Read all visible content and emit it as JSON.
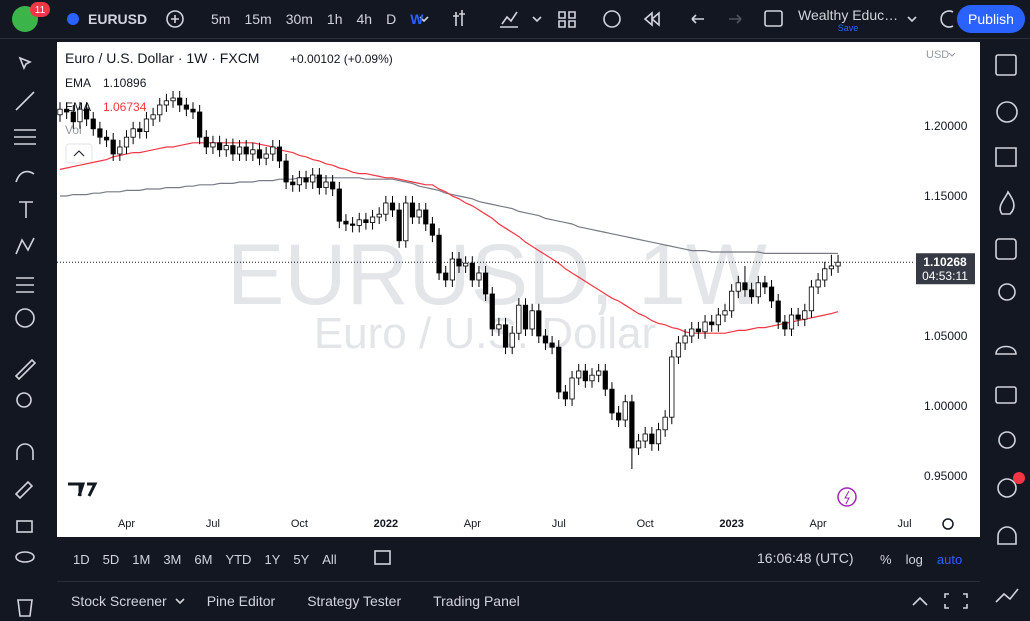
{
  "ui": {
    "notifications": "11",
    "symbol": "EURUSD",
    "intervals": [
      "5m",
      "15m",
      "30m",
      "1h",
      "4h",
      "D",
      "W"
    ],
    "active_interval": "W",
    "layout_name": "Wealthy Educ…",
    "save_status": "Save",
    "publish": "Publish",
    "legend_title": "Euro / U.S. Dollar · 1W · FXCM",
    "change": "+0.00102 (+0.09%)",
    "volume": "Vol",
    "currency": "USD",
    "watermark_symbol": "EURUSD, 1W",
    "watermark_description": "Euro / U.S. Dollar",
    "countdown": "04:53:11",
    "ranges": [
      "1D",
      "5D",
      "1M",
      "3M",
      "6M",
      "YTD",
      "1Y",
      "5Y",
      "All"
    ],
    "clock": "16:06:48 (UTC)",
    "scale_options": [
      "%",
      "log",
      "auto"
    ],
    "bottom_tabs": [
      "Stock Screener",
      "Pine Editor",
      "Strategy Tester",
      "Trading Panel"
    ]
  },
  "chart_data": {
    "type": "candlestick",
    "up_color": "#ffffff",
    "down_color": "#000000",
    "outline_color": "#000000",
    "grid": false,
    "ylim": [
      0.9257,
      1.26
    ],
    "yticks": [
      {
        "value": 0.95,
        "label": "0.95000"
      },
      {
        "value": 1.0,
        "label": "1.00000"
      },
      {
        "value": 1.05,
        "label": "1.05000"
      },
      {
        "value": 1.15,
        "label": "1.15000"
      },
      {
        "value": 1.2,
        "label": "1.20000"
      }
    ],
    "categories": [
      null,
      null,
      null,
      null,
      null,
      null,
      null,
      null,
      null,
      null,
      "Apr",
      null,
      null,
      null,
      null,
      null,
      null,
      null,
      null,
      null,
      null,
      null,
      null,
      "Jul",
      null,
      null,
      null,
      null,
      null,
      null,
      null,
      null,
      null,
      null,
      null,
      null,
      "Oct",
      null,
      null,
      null,
      null,
      null,
      null,
      null,
      null,
      null,
      null,
      null,
      null,
      "2022",
      null,
      null,
      null,
      null,
      null,
      null,
      null,
      null,
      null,
      null,
      null,
      null,
      "Apr",
      null,
      null,
      null,
      null,
      null,
      null,
      null,
      null,
      null,
      null,
      null,
      null,
      "Jul",
      null,
      null,
      null,
      null,
      null,
      null,
      null,
      null,
      null,
      null,
      null,
      null,
      "Oct",
      null,
      null,
      null,
      null,
      null,
      null,
      null,
      null,
      null,
      null,
      null,
      null,
      "2023",
      null,
      null,
      null,
      null,
      null,
      null,
      null,
      null,
      null,
      null,
      null,
      null,
      "Apr",
      null,
      null,
      null,
      null,
      null,
      null,
      null,
      null,
      null,
      null,
      null,
      null,
      "Jul"
    ],
    "open": [
      1.208,
      1.212,
      1.21,
      1.203,
      1.212,
      1.205,
      1.198,
      1.192,
      1.19,
      1.18,
      1.185,
      1.192,
      1.198,
      1.196,
      1.205,
      1.208,
      1.215,
      1.218,
      1.22,
      1.215,
      1.212,
      1.21,
      1.192,
      1.185,
      1.188,
      1.183,
      1.186,
      1.18,
      1.185,
      1.18,
      1.183,
      1.177,
      1.18,
      1.185,
      1.175,
      1.16,
      1.158,
      1.163,
      1.16,
      1.165,
      1.156,
      1.16,
      1.155,
      1.132,
      1.13,
      1.129,
      1.133,
      1.131,
      1.135,
      1.137,
      1.145,
      1.14,
      1.118,
      1.145,
      1.135,
      1.14,
      1.13,
      1.122,
      1.095,
      1.09,
      1.105,
      1.1,
      1.102,
      1.09,
      1.095,
      1.08,
      1.055,
      1.058,
      1.042,
      1.052,
      1.072,
      1.055,
      1.068,
      1.05,
      1.045,
      1.042,
      1.01,
      1.005,
      1.02,
      1.025,
      1.018,
      1.022,
      1.025,
      1.012,
      0.995,
      0.99,
      1.003,
      0.97,
      0.975,
      0.98,
      0.973,
      0.983,
      0.992,
      1.035,
      1.045,
      1.05,
      1.055,
      1.053,
      1.06,
      1.058,
      1.065,
      1.068,
      1.082,
      1.088,
      1.083,
      1.078,
      1.088,
      1.085,
      1.075,
      1.06,
      1.055,
      1.065,
      1.062,
      1.068,
      1.085,
      1.09,
      1.098,
      1.1,
      null,
      null,
      null,
      null,
      null,
      null,
      null,
      null,
      null,
      null
    ],
    "high": [
      1.217,
      1.217,
      1.215,
      1.217,
      1.217,
      1.21,
      1.203,
      1.197,
      1.195,
      1.19,
      1.197,
      1.203,
      1.203,
      1.21,
      1.213,
      1.22,
      1.223,
      1.225,
      1.225,
      1.22,
      1.217,
      1.215,
      1.197,
      1.193,
      1.193,
      1.191,
      1.191,
      1.19,
      1.19,
      1.188,
      1.188,
      1.185,
      1.19,
      1.19,
      1.18,
      1.165,
      1.168,
      1.168,
      1.17,
      1.17,
      1.165,
      1.165,
      1.16,
      1.137,
      1.135,
      1.138,
      1.138,
      1.14,
      1.142,
      1.15,
      1.15,
      1.145,
      1.15,
      1.15,
      1.145,
      1.145,
      1.135,
      1.127,
      1.1,
      1.11,
      1.11,
      1.107,
      1.107,
      1.1,
      1.1,
      1.085,
      1.063,
      1.063,
      1.057,
      1.077,
      1.077,
      1.073,
      1.073,
      1.055,
      1.05,
      1.047,
      1.015,
      1.025,
      1.03,
      1.03,
      1.027,
      1.03,
      1.03,
      1.017,
      1.0,
      1.008,
      1.008,
      0.98,
      0.985,
      0.985,
      0.988,
      0.997,
      1.04,
      1.05,
      1.055,
      1.06,
      1.06,
      1.065,
      1.065,
      1.07,
      1.073,
      1.087,
      1.093,
      1.1,
      1.088,
      1.093,
      1.093,
      1.09,
      1.08,
      1.065,
      1.07,
      1.07,
      1.073,
      1.09,
      1.095,
      1.103,
      1.108,
      1.108,
      null,
      null,
      null,
      null,
      null,
      null,
      null,
      null,
      null,
      null
    ],
    "low": [
      1.203,
      1.205,
      1.198,
      1.198,
      1.2,
      1.193,
      1.187,
      1.185,
      1.175,
      1.175,
      1.18,
      1.187,
      1.191,
      1.191,
      1.2,
      1.203,
      1.21,
      1.213,
      1.21,
      1.207,
      1.205,
      1.187,
      1.18,
      1.18,
      1.178,
      1.178,
      1.175,
      1.175,
      1.175,
      1.175,
      1.172,
      1.172,
      1.175,
      1.17,
      1.155,
      1.153,
      1.153,
      1.155,
      1.155,
      1.151,
      1.151,
      1.15,
      1.127,
      1.125,
      1.124,
      1.124,
      1.126,
      1.126,
      1.13,
      1.132,
      1.135,
      1.113,
      1.113,
      1.13,
      1.13,
      1.125,
      1.117,
      1.09,
      1.085,
      1.085,
      1.095,
      1.095,
      1.085,
      1.085,
      1.075,
      1.05,
      1.05,
      1.037,
      1.037,
      1.047,
      1.05,
      1.05,
      1.045,
      1.04,
      1.037,
      1.005,
      1.0,
      1.0,
      1.015,
      1.013,
      1.013,
      1.017,
      1.007,
      0.99,
      0.985,
      0.985,
      0.955,
      0.965,
      0.97,
      0.968,
      0.968,
      0.978,
      0.987,
      1.03,
      1.04,
      1.045,
      1.048,
      1.048,
      1.053,
      1.053,
      1.06,
      1.063,
      1.077,
      1.078,
      1.073,
      1.073,
      1.08,
      1.07,
      1.055,
      1.05,
      1.05,
      1.057,
      1.057,
      1.063,
      1.08,
      1.085,
      1.093,
      1.095,
      null,
      null,
      null,
      null,
      null,
      null,
      null,
      null,
      null,
      null
    ],
    "close": [
      1.212,
      1.21,
      1.203,
      1.212,
      1.205,
      1.198,
      1.192,
      1.19,
      1.18,
      1.185,
      1.192,
      1.198,
      1.196,
      1.205,
      1.208,
      1.215,
      1.218,
      1.22,
      1.215,
      1.212,
      1.21,
      1.192,
      1.185,
      1.188,
      1.183,
      1.186,
      1.18,
      1.185,
      1.18,
      1.183,
      1.177,
      1.18,
      1.185,
      1.175,
      1.16,
      1.158,
      1.163,
      1.16,
      1.165,
      1.156,
      1.16,
      1.155,
      1.132,
      1.13,
      1.129,
      1.133,
      1.131,
      1.135,
      1.137,
      1.145,
      1.14,
      1.118,
      1.145,
      1.135,
      1.14,
      1.13,
      1.122,
      1.095,
      1.09,
      1.105,
      1.1,
      1.102,
      1.09,
      1.095,
      1.08,
      1.055,
      1.058,
      1.042,
      1.052,
      1.072,
      1.055,
      1.068,
      1.05,
      1.045,
      1.042,
      1.01,
      1.005,
      1.02,
      1.025,
      1.018,
      1.022,
      1.025,
      1.012,
      0.995,
      0.99,
      1.003,
      0.97,
      0.975,
      0.98,
      0.973,
      0.983,
      0.992,
      1.035,
      1.045,
      1.05,
      1.055,
      1.053,
      1.06,
      1.058,
      1.065,
      1.068,
      1.082,
      1.088,
      1.083,
      1.078,
      1.088,
      1.085,
      1.075,
      1.06,
      1.055,
      1.065,
      1.062,
      1.068,
      1.085,
      1.09,
      1.098,
      1.1,
      1.10268,
      null,
      null,
      null,
      null,
      null,
      null,
      null,
      null,
      null,
      null
    ],
    "series": [
      {
        "name": "EMA",
        "color": "#787b86",
        "values": [
          1.15,
          1.15,
          1.151,
          1.151,
          1.151,
          1.152,
          1.152,
          1.153,
          1.153,
          1.153,
          1.154,
          1.154,
          1.154,
          1.155,
          1.155,
          1.155,
          1.156,
          1.156,
          1.156,
          1.157,
          1.157,
          1.158,
          1.158,
          1.158,
          1.159,
          1.159,
          1.159,
          1.16,
          1.16,
          1.16,
          1.161,
          1.161,
          1.161,
          1.162,
          1.162,
          1.162,
          1.163,
          1.163,
          1.163,
          1.163,
          1.163,
          1.163,
          1.163,
          1.163,
          1.163,
          1.163,
          1.162,
          1.162,
          1.162,
          1.162,
          1.162,
          1.161,
          1.16,
          1.159,
          1.157,
          1.156,
          1.155,
          1.154,
          1.152,
          1.151,
          1.15,
          1.149,
          1.148,
          1.146,
          1.145,
          1.144,
          1.143,
          1.142,
          1.141,
          1.139,
          1.138,
          1.137,
          1.136,
          1.134,
          1.133,
          1.132,
          1.131,
          1.13,
          1.128,
          1.127,
          1.126,
          1.125,
          1.124,
          1.123,
          1.122,
          1.121,
          1.12,
          1.119,
          1.118,
          1.117,
          1.116,
          1.115,
          1.114,
          1.113,
          1.112,
          1.111,
          1.111,
          1.111,
          1.11,
          1.11,
          1.11,
          1.11,
          1.11,
          1.11,
          1.11,
          1.11,
          1.109,
          1.109,
          1.109,
          1.109,
          1.109,
          1.109,
          1.109,
          1.109,
          1.109,
          1.109,
          1.109,
          1.10896,
          null,
          null,
          null,
          null,
          null,
          null,
          null,
          null,
          null,
          null
        ]
      },
      {
        "name": "EMA",
        "color": "#f23645",
        "values": [
          1.169,
          1.17,
          1.171,
          1.172,
          1.173,
          1.174,
          1.175,
          1.176,
          1.178,
          1.179,
          1.18,
          1.181,
          1.181,
          1.182,
          1.183,
          1.184,
          1.185,
          1.185,
          1.186,
          1.187,
          1.188,
          1.188,
          1.188,
          1.188,
          1.188,
          1.188,
          1.188,
          1.188,
          1.188,
          1.188,
          1.187,
          1.186,
          1.185,
          1.183,
          1.182,
          1.181,
          1.179,
          1.178,
          1.176,
          1.175,
          1.173,
          1.172,
          1.17,
          1.169,
          1.167,
          1.166,
          1.166,
          1.165,
          1.164,
          1.163,
          1.163,
          1.162,
          1.161,
          1.16,
          1.159,
          1.158,
          1.158,
          1.155,
          1.153,
          1.15,
          1.148,
          1.145,
          1.143,
          1.14,
          1.137,
          1.134,
          1.13,
          1.127,
          1.124,
          1.121,
          1.117,
          1.114,
          1.111,
          1.108,
          1.105,
          1.102,
          1.098,
          1.095,
          1.092,
          1.089,
          1.086,
          1.083,
          1.08,
          1.077,
          1.075,
          1.072,
          1.069,
          1.066,
          1.064,
          1.061,
          1.059,
          1.058,
          1.056,
          1.055,
          1.053,
          1.052,
          1.052,
          1.052,
          1.052,
          1.052,
          1.052,
          1.053,
          1.054,
          1.054,
          1.055,
          1.056,
          1.056,
          1.057,
          1.058,
          1.059,
          1.06,
          1.061,
          1.062,
          1.063,
          1.064,
          1.065,
          1.066,
          1.06734,
          null,
          null,
          null,
          null,
          null,
          null,
          null,
          null,
          null,
          null
        ]
      }
    ]
  }
}
